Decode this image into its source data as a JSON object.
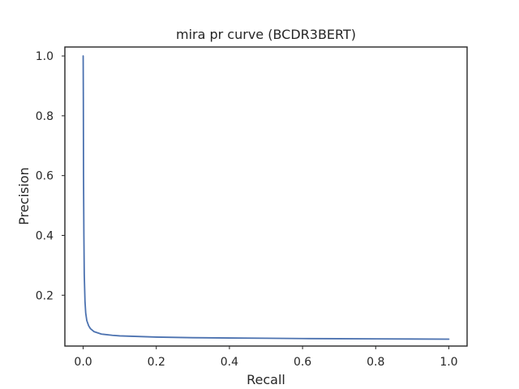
{
  "chart_data": {
    "type": "line",
    "title": "mira pr curve (BCDR3BERT)",
    "xlabel": "Recall",
    "ylabel": "Precision",
    "xlim": [
      -0.05,
      1.05
    ],
    "ylim": [
      0.03,
      1.03
    ],
    "xticks": [
      0.0,
      0.2,
      0.4,
      0.6,
      0.8,
      1.0
    ],
    "xtick_labels": [
      "0.0",
      "0.2",
      "0.4",
      "0.6",
      "0.8",
      "1.0"
    ],
    "yticks": [
      0.2,
      0.4,
      0.6,
      0.8,
      1.0
    ],
    "ytick_labels": [
      "0.2",
      "0.4",
      "0.6",
      "0.8",
      "1.0"
    ],
    "grid": false,
    "color": "#4c72b0",
    "series": [
      {
        "x": [
          0.0,
          0.0005,
          0.001,
          0.002,
          0.003,
          0.005,
          0.007,
          0.01,
          0.015,
          0.02,
          0.03,
          0.05,
          0.08,
          0.1,
          0.15,
          0.2,
          0.3,
          0.4,
          0.5,
          0.6,
          0.7,
          0.8,
          0.9,
          1.0
        ],
        "y": [
          1.0,
          0.85,
          0.6,
          0.4,
          0.27,
          0.18,
          0.14,
          0.115,
          0.098,
          0.088,
          0.078,
          0.07,
          0.066,
          0.064,
          0.062,
          0.06,
          0.058,
          0.057,
          0.056,
          0.055,
          0.0545,
          0.054,
          0.0535,
          0.053
        ]
      }
    ]
  }
}
